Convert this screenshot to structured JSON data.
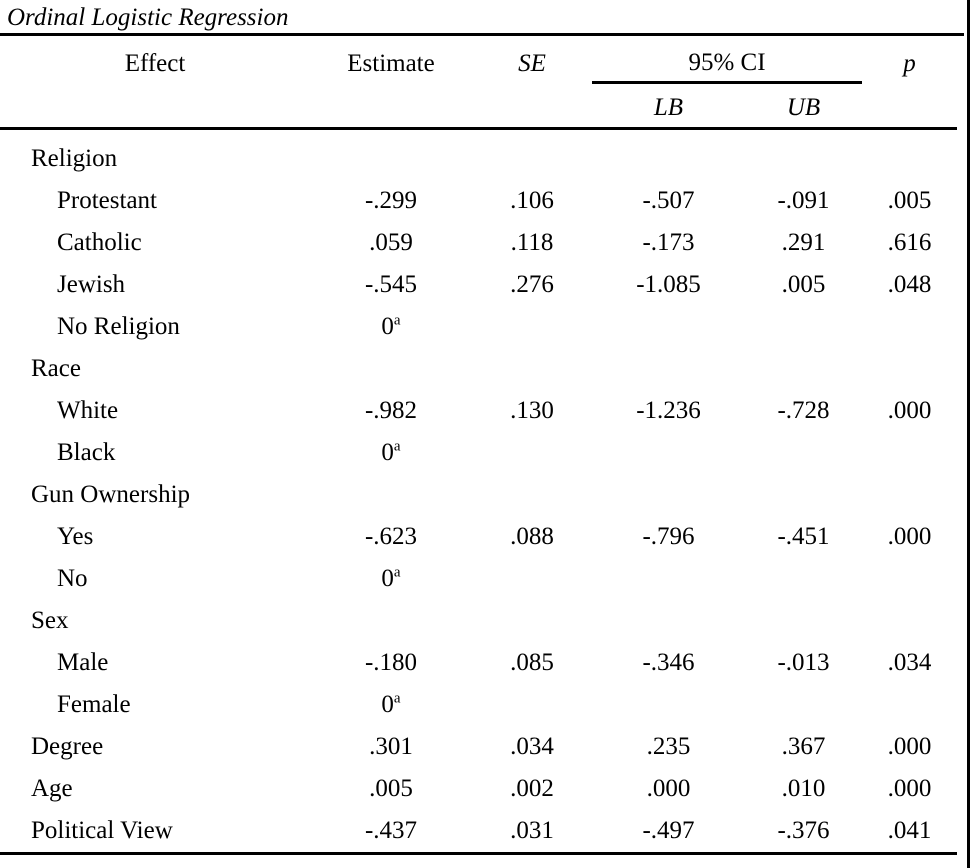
{
  "page": {
    "title": "Ordinal Logistic Regression"
  },
  "colors": {
    "text": "#000000",
    "background": "#ffffff",
    "rule": "#000000"
  },
  "table": {
    "headers": {
      "effect": "Effect",
      "estimate": "Estimate",
      "se": "SE",
      "ci": "95% CI",
      "lb": "LB",
      "ub": "UB",
      "p": "p"
    },
    "rows": [
      {
        "label": "Religion",
        "indent": false
      },
      {
        "label": "Protestant",
        "indent": true,
        "estimate": "-.299",
        "se": ".106",
        "lb": "-.507",
        "ub": "-.091",
        "p": ".005"
      },
      {
        "label": "Catholic",
        "indent": true,
        "estimate": ".059",
        "se": ".118",
        "lb": "-.173",
        "ub": ".291",
        "p": ".616"
      },
      {
        "label": "Jewish",
        "indent": true,
        "estimate": "-.545",
        "se": ".276",
        "lb": "-1.085",
        "ub": ".005",
        "p": ".048"
      },
      {
        "label": "No Religion",
        "indent": true,
        "estimate": "0",
        "estimate_sup": "a"
      },
      {
        "label": "Race",
        "indent": false
      },
      {
        "label": "White",
        "indent": true,
        "estimate": "-.982",
        "se": ".130",
        "lb": "-1.236",
        "ub": "-.728",
        "p": ".000"
      },
      {
        "label": "Black",
        "indent": true,
        "estimate": "0",
        "estimate_sup": "a"
      },
      {
        "label": "Gun Ownership",
        "indent": false
      },
      {
        "label": "Yes",
        "indent": true,
        "estimate": "-.623",
        "se": ".088",
        "lb": "-.796",
        "ub": "-.451",
        "p": ".000"
      },
      {
        "label": "No",
        "indent": true,
        "estimate": "0",
        "estimate_sup": "a"
      },
      {
        "label": "Sex",
        "indent": false
      },
      {
        "label": "Male",
        "indent": true,
        "estimate": "-.180",
        "se": ".085",
        "lb": "-.346",
        "ub": "-.013",
        "p": ".034"
      },
      {
        "label": "Female",
        "indent": true,
        "estimate": "0",
        "estimate_sup": "a"
      },
      {
        "label": "Degree",
        "indent": false,
        "estimate": ".301",
        "se": ".034",
        "lb": ".235",
        "ub": ".367",
        "p": ".000"
      },
      {
        "label": "Age",
        "indent": false,
        "estimate": ".005",
        "se": ".002",
        "lb": ".000",
        "ub": ".010",
        "p": ".000"
      },
      {
        "label": "Political View",
        "indent": false,
        "estimate": "-.437",
        "se": ".031",
        "lb": "-.497",
        "ub": "-.376",
        "p": ".041"
      }
    ]
  }
}
